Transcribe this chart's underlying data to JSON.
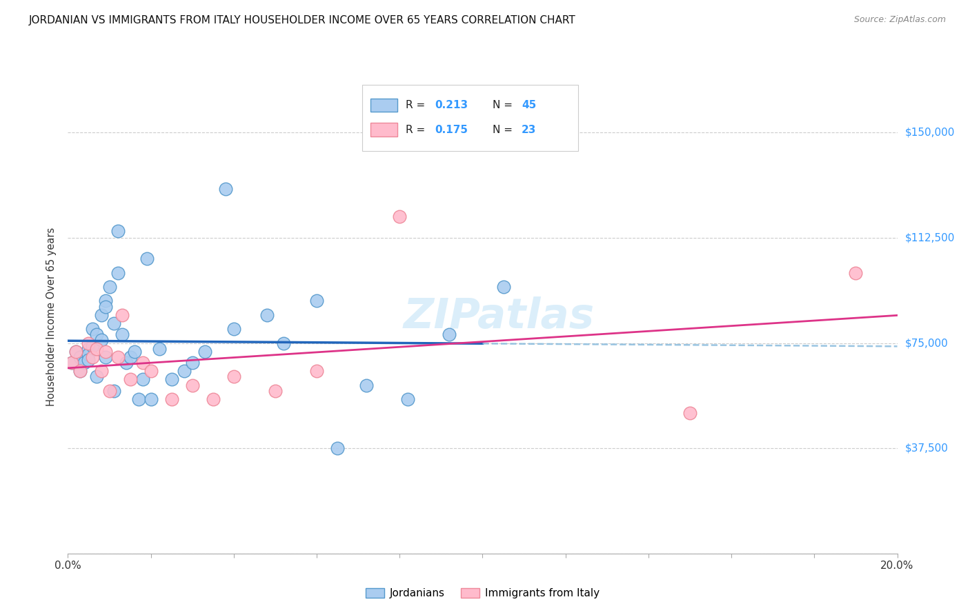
{
  "title": "JORDANIAN VS IMMIGRANTS FROM ITALY HOUSEHOLDER INCOME OVER 65 YEARS CORRELATION CHART",
  "source": "Source: ZipAtlas.com",
  "ylabel": "Householder Income Over 65 years",
  "xlim": [
    0.0,
    0.2
  ],
  "ylim": [
    0,
    168750
  ],
  "yticks": [
    0,
    37500,
    75000,
    112500,
    150000
  ],
  "ytick_labels": [
    "",
    "$37,500",
    "$75,000",
    "$112,500",
    "$150,000"
  ],
  "xtick_positions": [
    0.0,
    0.02,
    0.04,
    0.06,
    0.08,
    0.1,
    0.12,
    0.14,
    0.16,
    0.18,
    0.2
  ],
  "xtick_labels": [
    "0.0%",
    "",
    "",
    "",
    "",
    "",
    "",
    "",
    "",
    "",
    "20.0%"
  ],
  "legend_labels": [
    "Jordanians",
    "Immigrants from Italy"
  ],
  "R_jordan": "0.213",
  "N_jordan": "45",
  "R_italy": "0.175",
  "N_italy": "23",
  "scatter_blue_face": "#aaccf0",
  "scatter_blue_edge": "#5599cc",
  "scatter_pink_face": "#ffbbcc",
  "scatter_pink_edge": "#ee8899",
  "line_blue_color": "#2266bb",
  "line_pink_color": "#dd3388",
  "line_dash_color": "#88bbdd",
  "grid_color": "#cccccc",
  "ytick_color": "#3399ff",
  "watermark_color": "#cce8f8",
  "watermark_text": "ZIPatlas",
  "jordan_x": [
    0.001,
    0.002,
    0.003,
    0.003,
    0.004,
    0.005,
    0.005,
    0.005,
    0.006,
    0.006,
    0.007,
    0.007,
    0.008,
    0.008,
    0.009,
    0.009,
    0.009,
    0.01,
    0.011,
    0.011,
    0.012,
    0.012,
    0.013,
    0.014,
    0.015,
    0.016,
    0.017,
    0.018,
    0.019,
    0.02,
    0.022,
    0.025,
    0.028,
    0.03,
    0.033,
    0.038,
    0.04,
    0.048,
    0.052,
    0.06,
    0.065,
    0.072,
    0.082,
    0.092,
    0.105
  ],
  "jordan_y": [
    68000,
    72000,
    70000,
    65000,
    68000,
    73000,
    71000,
    69000,
    80000,
    74000,
    78000,
    63000,
    85000,
    76000,
    90000,
    88000,
    70000,
    95000,
    82000,
    58000,
    100000,
    115000,
    78000,
    68000,
    70000,
    72000,
    55000,
    62000,
    105000,
    55000,
    73000,
    62000,
    65000,
    68000,
    72000,
    130000,
    80000,
    85000,
    75000,
    90000,
    37500,
    60000,
    55000,
    78000,
    95000
  ],
  "italy_x": [
    0.001,
    0.002,
    0.003,
    0.005,
    0.006,
    0.007,
    0.008,
    0.009,
    0.01,
    0.012,
    0.013,
    0.015,
    0.018,
    0.02,
    0.025,
    0.03,
    0.035,
    0.04,
    0.05,
    0.06,
    0.08,
    0.15,
    0.19
  ],
  "italy_y": [
    68000,
    72000,
    65000,
    75000,
    70000,
    73000,
    65000,
    72000,
    58000,
    70000,
    85000,
    62000,
    68000,
    65000,
    55000,
    60000,
    55000,
    63000,
    58000,
    65000,
    120000,
    50000,
    100000
  ]
}
